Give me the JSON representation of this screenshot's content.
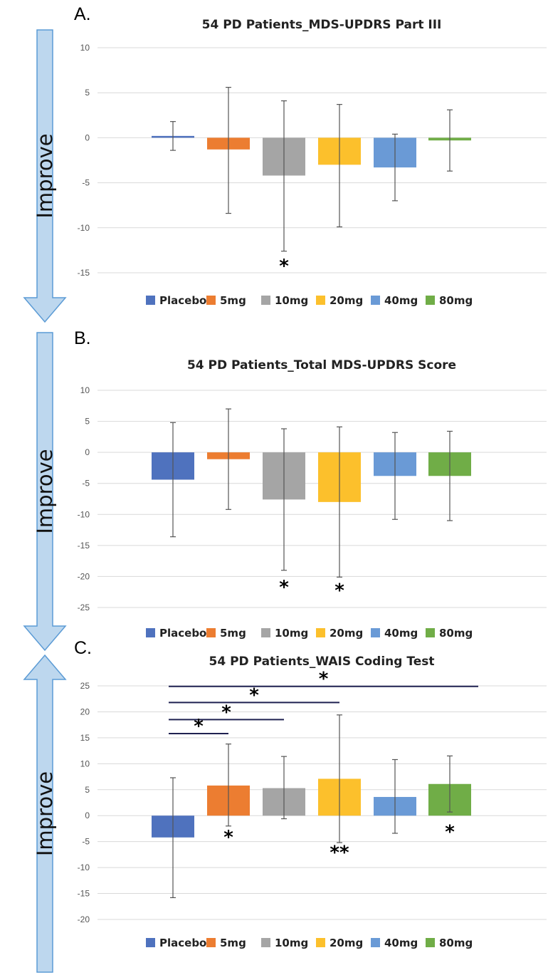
{
  "arrows": [
    {
      "label": "Improve",
      "direction": "down"
    },
    {
      "label": "Improve",
      "direction": "down"
    },
    {
      "label": "Improve",
      "direction": "up"
    }
  ],
  "colors": {
    "Placebo": "#4f72be",
    "5mg": "#ec7d31",
    "10mg": "#a5a5a5",
    "20mg": "#fcc02c",
    "40mg": "#6a9ad6",
    "80mg": "#70ad47",
    "arrow_fill": "#bdd7ee",
    "arrow_stroke": "#5b9bd5",
    "grid": "#d9d9d9",
    "error_bar": "#555555",
    "bracket": "#1f2150"
  },
  "chart_data": [
    {
      "panel": "A.",
      "type": "bar",
      "title": "54 PD Patients_MDS-UPDRS Part III",
      "categories": [
        "Placebo",
        "5mg",
        "10mg",
        "20mg",
        "40mg",
        "80mg"
      ],
      "values": [
        0.2,
        -1.3,
        -4.2,
        -3.0,
        -3.3,
        -0.3
      ],
      "error_high": [
        1.8,
        5.6,
        4.1,
        3.7,
        0.4,
        3.1
      ],
      "error_low": [
        -1.4,
        -8.4,
        -12.6,
        -9.9,
        -7.0,
        -3.7
      ],
      "ylim": [
        -15,
        10
      ],
      "yticks": [
        10,
        5,
        0,
        -5,
        -10,
        -15
      ],
      "grid": true,
      "legend": "bottom",
      "annotations": [
        {
          "text": "*",
          "category": "10mg",
          "y": -14.3
        }
      ]
    },
    {
      "panel": "B.",
      "type": "bar",
      "title": "54 PD Patients_Total MDS-UPDRS Score",
      "categories": [
        "Placebo",
        "5mg",
        "10mg",
        "20mg",
        "40mg",
        "80mg"
      ],
      "values": [
        -4.4,
        -1.1,
        -7.6,
        -8.0,
        -3.8,
        -3.8
      ],
      "error_high": [
        4.8,
        7.0,
        3.8,
        4.1,
        3.2,
        3.4
      ],
      "error_low": [
        -13.6,
        -9.2,
        -19.0,
        -20.1,
        -10.8,
        -11.0
      ],
      "ylim": [
        -25,
        10
      ],
      "yticks": [
        10,
        5,
        0,
        -5,
        -10,
        -15,
        -20,
        -25
      ],
      "grid": true,
      "legend": "bottom",
      "annotations": [
        {
          "text": "*",
          "category": "10mg",
          "y": -21.8
        },
        {
          "text": "*",
          "category": "20mg",
          "y": -22.3
        }
      ]
    },
    {
      "panel": "C.",
      "type": "bar",
      "title": "54 PD Patients_WAIS Coding Test",
      "categories": [
        "Placebo",
        "5mg",
        "10mg",
        "20mg",
        "40mg",
        "80mg"
      ],
      "values": [
        -4.2,
        5.8,
        5.3,
        7.1,
        3.6,
        6.1
      ],
      "error_high": [
        7.3,
        13.8,
        11.4,
        19.4,
        10.8,
        11.5
      ],
      "error_low": [
        -15.8,
        -2.0,
        -0.6,
        -5.2,
        -3.4,
        0.7
      ],
      "ylim": [
        -20,
        25
      ],
      "yticks": [
        25,
        20,
        15,
        10,
        5,
        0,
        -5,
        -10,
        -15,
        -20
      ],
      "grid": true,
      "legend": "bottom",
      "annotations": [
        {
          "text": "*",
          "category": "5mg",
          "y": -4.2
        },
        {
          "text": "**",
          "category": "20mg",
          "y": -7.2
        },
        {
          "text": "*",
          "category": "80mg",
          "y": -3.2
        }
      ],
      "brackets": [
        {
          "text": "*",
          "from": "Placebo",
          "to": "80mg",
          "y": 24.9
        },
        {
          "text": "*",
          "from": "Placebo",
          "to": "20mg",
          "y": 21.8
        },
        {
          "text": "*",
          "from": "Placebo",
          "to": "10mg",
          "y": 18.5
        },
        {
          "text": "*",
          "from": "Placebo",
          "to": "5mg",
          "y": 15.8
        }
      ]
    }
  ]
}
